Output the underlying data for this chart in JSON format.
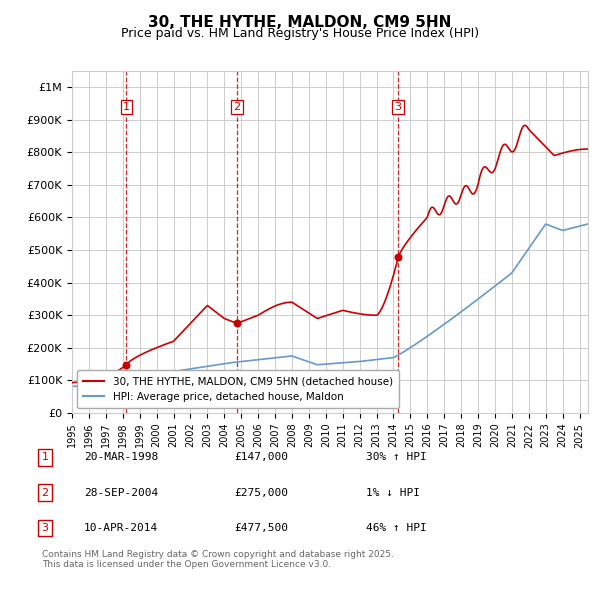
{
  "title": "30, THE HYTHE, MALDON, CM9 5HN",
  "subtitle": "Price paid vs. HM Land Registry's House Price Index (HPI)",
  "sale_prices": [
    147000,
    275000,
    477500
  ],
  "sale_labels": [
    "1",
    "2",
    "3"
  ],
  "vline_x": [
    1998.22,
    2004.75,
    2014.28
  ],
  "ylabel_ticks": [
    0,
    100000,
    200000,
    300000,
    400000,
    500000,
    600000,
    700000,
    800000,
    900000,
    1000000
  ],
  "ylabel_labels": [
    "£0",
    "£100K",
    "£200K",
    "£300K",
    "£400K",
    "£500K",
    "£600K",
    "£700K",
    "£800K",
    "£900K",
    "£1M"
  ],
  "xlim": [
    1995,
    2025.5
  ],
  "ylim": [
    0,
    1050000
  ],
  "xticks": [
    1995,
    1996,
    1997,
    1998,
    1999,
    2000,
    2001,
    2002,
    2003,
    2004,
    2005,
    2006,
    2007,
    2008,
    2009,
    2010,
    2011,
    2012,
    2013,
    2014,
    2015,
    2016,
    2017,
    2018,
    2019,
    2020,
    2021,
    2022,
    2023,
    2024,
    2025
  ],
  "red_line_color": "#cc0000",
  "blue_line_color": "#6699cc",
  "vline_color": "#cc0000",
  "background_color": "#ffffff",
  "grid_color": "#cccccc",
  "legend_labels": [
    "30, THE HYTHE, MALDON, CM9 5HN (detached house)",
    "HPI: Average price, detached house, Maldon"
  ],
  "table_rows": [
    {
      "num": "1",
      "date": "20-MAR-1998",
      "price": "£147,000",
      "hpi": "30% ↑ HPI"
    },
    {
      "num": "2",
      "date": "28-SEP-2004",
      "price": "£275,000",
      "hpi": "1% ↓ HPI"
    },
    {
      "num": "3",
      "date": "10-APR-2014",
      "price": "£477,500",
      "hpi": "46% ↑ HPI"
    }
  ],
  "footnote": "Contains HM Land Registry data © Crown copyright and database right 2025.\nThis data is licensed under the Open Government Licence v3.0."
}
